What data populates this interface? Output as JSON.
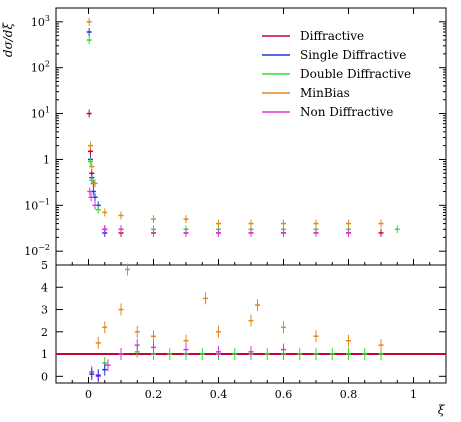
{
  "chart_data": {
    "type": "scatter",
    "ylabel": "dσ/dξ",
    "xlabel": "ξ",
    "x_ticks": [
      "0",
      "0.2",
      "0.4",
      "0.6",
      "0.8",
      "1"
    ],
    "upper": {
      "yscale": "log",
      "ylim": [
        0.005,
        2000
      ],
      "y_ticks": [
        {
          "v": 0.01,
          "base": "10",
          "exp": "−2"
        },
        {
          "v": 0.1,
          "base": "10",
          "exp": "−1"
        },
        {
          "v": 1,
          "base": "1",
          "exp": ""
        },
        {
          "v": 10,
          "base": "10",
          "exp": "1"
        },
        {
          "v": 100,
          "base": "10",
          "exp": "2"
        },
        {
          "v": 1000,
          "base": "10",
          "exp": "3"
        }
      ],
      "legend": {
        "placement": "top-right"
      },
      "series": [
        {
          "name": "Diffractive",
          "color": "#cc0033",
          "points": [
            [
              0.002,
              10
            ],
            [
              0.006,
              1.5
            ],
            [
              0.01,
              0.5
            ],
            [
              0.015,
              0.3
            ],
            [
              0.05,
              0.03
            ],
            [
              0.1,
              0.025
            ],
            [
              0.2,
              0.025
            ],
            [
              0.3,
              0.025
            ],
            [
              0.4,
              0.025
            ],
            [
              0.5,
              0.025
            ],
            [
              0.6,
              0.025
            ],
            [
              0.7,
              0.025
            ],
            [
              0.8,
              0.025
            ],
            [
              0.9,
              0.025
            ]
          ]
        },
        {
          "name": "Single Diffractive",
          "color": "#2233dd",
          "points": [
            [
              0.002,
              600
            ],
            [
              0.006,
              1.0
            ],
            [
              0.01,
              0.4
            ],
            [
              0.015,
              0.2
            ],
            [
              0.02,
              0.15
            ],
            [
              0.03,
              0.1
            ],
            [
              0.05,
              0.025
            ]
          ]
        },
        {
          "name": "Double Diffractive",
          "color": "#33dd33",
          "points": [
            [
              0.002,
              400
            ],
            [
              0.006,
              0.9
            ],
            [
              0.01,
              0.35
            ],
            [
              0.03,
              0.08
            ],
            [
              0.1,
              0.03
            ],
            [
              0.2,
              0.03
            ],
            [
              0.3,
              0.03
            ],
            [
              0.4,
              0.03
            ],
            [
              0.5,
              0.03
            ],
            [
              0.6,
              0.03
            ],
            [
              0.7,
              0.03
            ],
            [
              0.8,
              0.03
            ],
            [
              0.95,
              0.03
            ]
          ]
        },
        {
          "name": "MinBias",
          "color": "#e08a1e",
          "points": [
            [
              0.002,
              1000
            ],
            [
              0.006,
              2.0
            ],
            [
              0.01,
              0.7
            ],
            [
              0.02,
              0.3
            ],
            [
              0.05,
              0.07
            ],
            [
              0.1,
              0.06
            ],
            [
              0.2,
              0.05
            ],
            [
              0.3,
              0.05
            ],
            [
              0.4,
              0.04
            ],
            [
              0.5,
              0.04
            ],
            [
              0.6,
              0.04
            ],
            [
              0.7,
              0.04
            ],
            [
              0.8,
              0.04
            ],
            [
              0.9,
              0.04
            ]
          ]
        },
        {
          "name": "Non Diffractive",
          "color": "#dd33dd",
          "points": [
            [
              0.004,
              0.2
            ],
            [
              0.008,
              0.15
            ],
            [
              0.02,
              0.1
            ],
            [
              0.05,
              0.03
            ],
            [
              0.1,
              0.03
            ],
            [
              0.2,
              0.025
            ],
            [
              0.3,
              0.025
            ],
            [
              0.4,
              0.025
            ],
            [
              0.5,
              0.025
            ],
            [
              0.6,
              0.025
            ],
            [
              0.7,
              0.025
            ],
            [
              0.8,
              0.025
            ]
          ]
        }
      ]
    },
    "lower": {
      "ylim": [
        -0.3,
        5
      ],
      "y_ticks": [
        "0",
        "1",
        "2",
        "3",
        "4",
        "5"
      ],
      "reference_line": 1.0,
      "series": [
        {
          "name": "Double Diffractive",
          "color": "#33dd33",
          "points": [
            [
              0.05,
              0.6
            ],
            [
              0.1,
              1.0
            ],
            [
              0.15,
              1.1
            ],
            [
              0.2,
              1.0
            ],
            [
              0.25,
              1.0
            ],
            [
              0.3,
              1.0
            ],
            [
              0.35,
              1.0
            ],
            [
              0.4,
              1.0
            ],
            [
              0.45,
              1.0
            ],
            [
              0.5,
              1.0
            ],
            [
              0.55,
              1.0
            ],
            [
              0.6,
              1.0
            ],
            [
              0.65,
              1.0
            ],
            [
              0.7,
              1.0
            ],
            [
              0.75,
              1.0
            ],
            [
              0.8,
              1.0
            ],
            [
              0.85,
              1.0
            ],
            [
              0.9,
              1.0
            ]
          ]
        },
        {
          "name": "MinBias",
          "color": "#e08a1e",
          "points": [
            [
              0.03,
              1.5
            ],
            [
              0.05,
              2.2
            ],
            [
              0.1,
              3.0
            ],
            [
              0.12,
              4.8
            ],
            [
              0.15,
              2.0
            ],
            [
              0.2,
              1.8
            ],
            [
              0.3,
              1.6
            ],
            [
              0.36,
              3.5
            ],
            [
              0.4,
              2.0
            ],
            [
              0.5,
              2.5
            ],
            [
              0.52,
              3.2
            ],
            [
              0.6,
              2.2
            ],
            [
              0.7,
              1.8
            ],
            [
              0.8,
              1.6
            ],
            [
              0.9,
              1.4
            ]
          ]
        },
        {
          "name": "Non Diffractive",
          "color": "#dd33dd",
          "points": [
            [
              0.01,
              0.2
            ],
            [
              0.03,
              0.0
            ],
            [
              0.06,
              0.5
            ],
            [
              0.1,
              1.0
            ],
            [
              0.15,
              1.4
            ],
            [
              0.2,
              1.3
            ],
            [
              0.3,
              1.2
            ],
            [
              0.4,
              1.1
            ],
            [
              0.5,
              1.1
            ],
            [
              0.6,
              1.2
            ]
          ]
        },
        {
          "name": "Single Diffractive",
          "color": "#2233dd",
          "points": [
            [
              0.01,
              0.1
            ],
            [
              0.03,
              0.05
            ],
            [
              0.05,
              0.3
            ]
          ]
        }
      ]
    }
  }
}
